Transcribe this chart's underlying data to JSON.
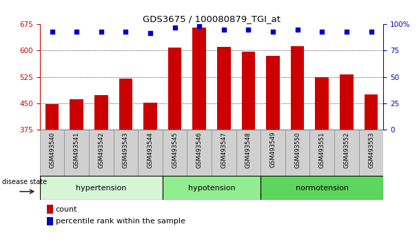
{
  "title": "GDS3675 / 100080879_TGI_at",
  "samples": [
    "GSM493540",
    "GSM493541",
    "GSM493542",
    "GSM493543",
    "GSM493544",
    "GSM493545",
    "GSM493546",
    "GSM493547",
    "GSM493548",
    "GSM493549",
    "GSM493550",
    "GSM493551",
    "GSM493552",
    "GSM493553"
  ],
  "counts": [
    447,
    460,
    472,
    520,
    452,
    608,
    665,
    610,
    596,
    585,
    612,
    524,
    532,
    475
  ],
  "percentiles": [
    93,
    93,
    93,
    93,
    92,
    97,
    98,
    95,
    95,
    93,
    95,
    93,
    93,
    93
  ],
  "groups": [
    {
      "label": "hypertension",
      "start": 0,
      "end": 5,
      "color": "#d6f5d6"
    },
    {
      "label": "hypotension",
      "start": 5,
      "end": 9,
      "color": "#90ee90"
    },
    {
      "label": "normotension",
      "start": 9,
      "end": 14,
      "color": "#5cd65c"
    }
  ],
  "ylim_left": [
    375,
    675
  ],
  "ylim_right": [
    0,
    100
  ],
  "yticks_left": [
    375,
    450,
    525,
    600,
    675
  ],
  "yticks_right": [
    0,
    25,
    50,
    75,
    100
  ],
  "bar_color": "#cc0000",
  "dot_color": "#0000cc",
  "bar_width": 0.55,
  "left_axis_color": "#cc0000",
  "right_axis_color": "#0000cc",
  "legend_count_color": "#cc0000",
  "legend_percentile_color": "#0000cc",
  "xtick_bg_color": "#d0d0d0",
  "xtick_border_color": "#888888"
}
